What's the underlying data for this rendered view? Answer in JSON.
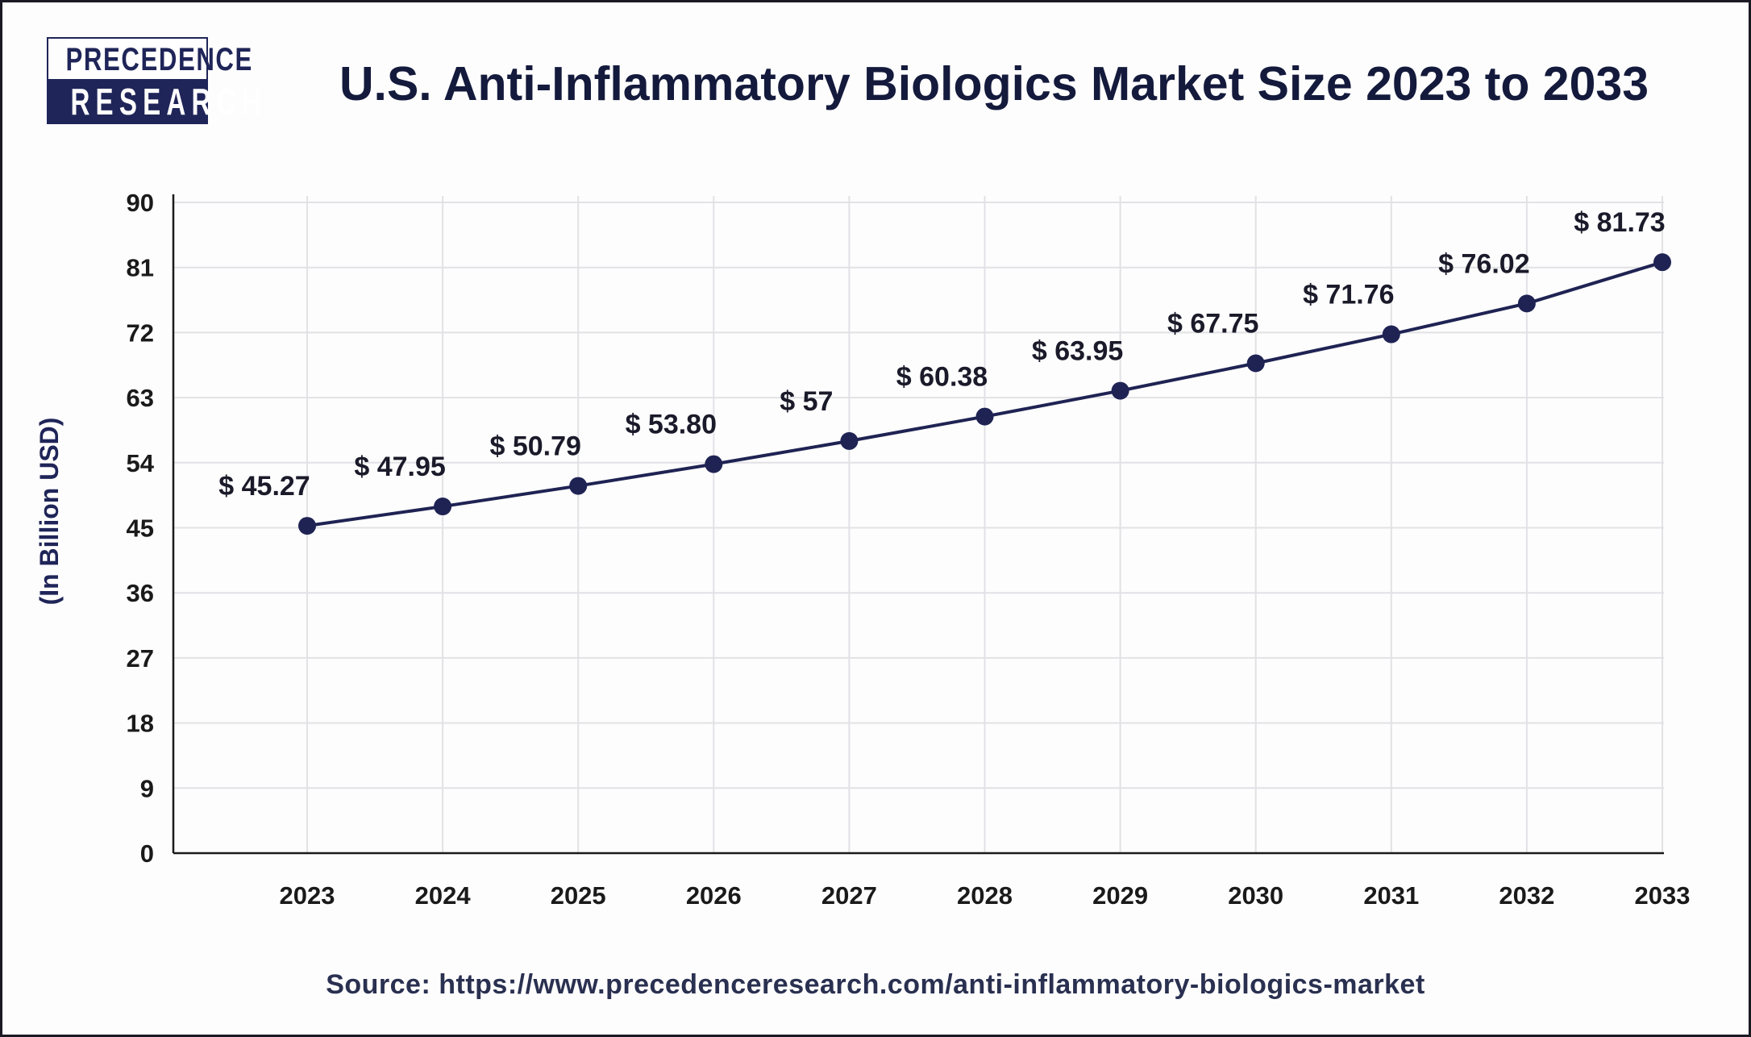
{
  "logo": {
    "line1": "PRECEDENCE",
    "line2": "RESEARCH"
  },
  "colors": {
    "line": "#1f2353",
    "title": "#141a3c",
    "grid": "#e2e2e6",
    "axis": "#1a1a1a"
  },
  "source": "Source: https://www.precedenceresearch.com/anti-inflammatory-biologics-market",
  "chart_data": {
    "type": "line",
    "title": "U.S. Anti-Inflammatory Biologics Market Size 2023 to 2033",
    "xlabel": "",
    "ylabel": "(In Billion USD)",
    "ylim": [
      0,
      90
    ],
    "yticks": [
      0,
      9,
      18,
      27,
      36,
      45,
      54,
      63,
      72,
      81,
      90
    ],
    "grid": true,
    "categories": [
      "2023",
      "2024",
      "2025",
      "2026",
      "2027",
      "2028",
      "2029",
      "2030",
      "2031",
      "2032",
      "2033"
    ],
    "values": [
      45.27,
      47.95,
      50.79,
      53.8,
      57,
      60.38,
      63.95,
      67.75,
      71.76,
      76.02,
      81.73
    ],
    "data_labels": [
      "$ 45.27",
      "$ 47.95",
      "$ 50.79",
      "$ 53.80",
      "$ 57",
      "$ 60.38",
      "$ 63.95",
      "$ 67.75",
      "$ 71.76",
      "$ 76.02",
      "$ 81.73"
    ]
  }
}
